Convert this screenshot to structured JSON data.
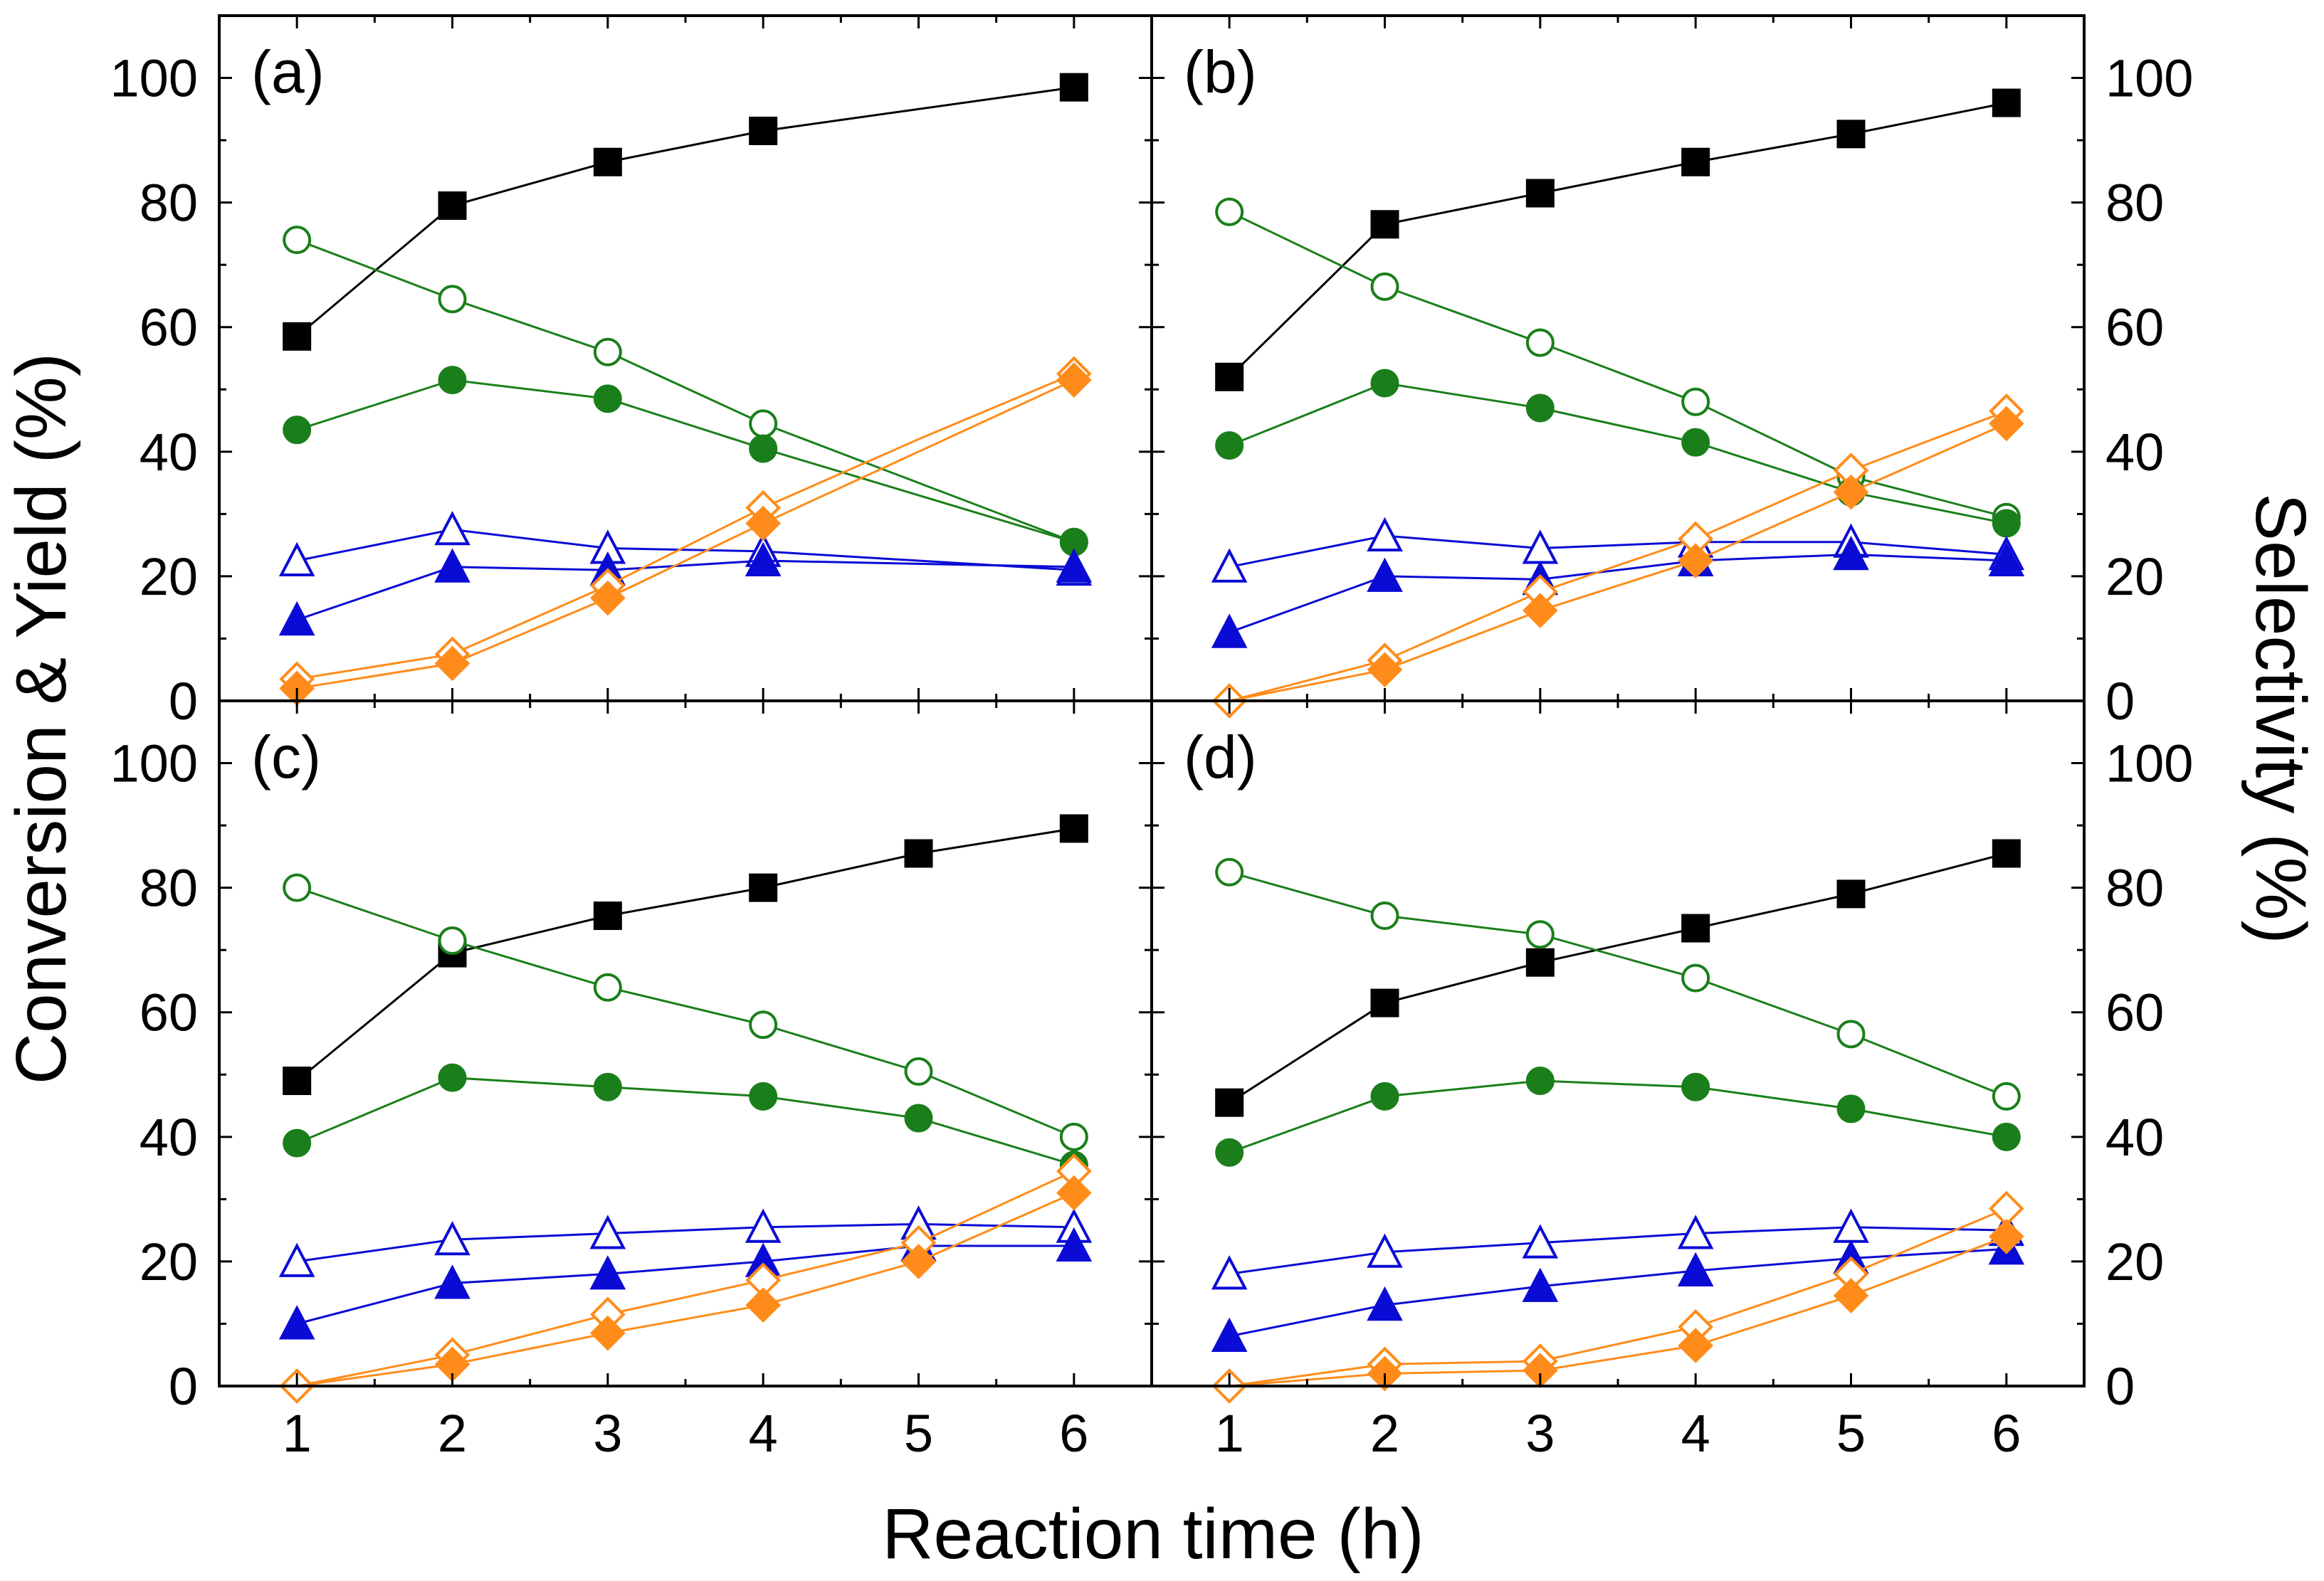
{
  "chart_data": {
    "type": "line",
    "xlabel": "Reaction time (h)",
    "ylabel_left": "Conversion & Yield (%)",
    "ylabel_right": "Selectivity (%)",
    "x": [
      1,
      2,
      3,
      4,
      5,
      6
    ],
    "xticks": [
      "1",
      "2",
      "3",
      "4",
      "5",
      "6"
    ],
    "xlim": [
      0.5,
      6.5
    ],
    "ylim": [
      0,
      110
    ],
    "yticks": [
      "0",
      "20",
      "40",
      "60",
      "80",
      "100"
    ],
    "colors": {
      "black": "#000000",
      "green": "#1a7f1a",
      "blue": "#0b0bd6",
      "orange": "#ff8c1a"
    },
    "panels": [
      {
        "label": "(a)",
        "series": [
          {
            "name": "black-filled-square",
            "color": "#000000",
            "marker": "square",
            "filled": true,
            "values": [
              58.5,
              79.5,
              86.5,
              91.5,
              95,
              98.5
            ],
            "marked": [
              true,
              true,
              true,
              true,
              false,
              true
            ]
          },
          {
            "name": "green-open-circle",
            "color": "#1a7f1a",
            "marker": "circle",
            "filled": false,
            "values": [
              74,
              64.5,
              56,
              44.5,
              35,
              25.5
            ],
            "marked": [
              true,
              true,
              true,
              true,
              false,
              true
            ]
          },
          {
            "name": "green-filled-circle",
            "color": "#1a7f1a",
            "marker": "circle",
            "filled": true,
            "values": [
              43.5,
              51.5,
              48.5,
              40.5,
              33,
              25.5
            ],
            "marked": [
              true,
              true,
              true,
              true,
              false,
              true
            ]
          },
          {
            "name": "blue-open-triangle",
            "color": "#0b0bd6",
            "marker": "triangle",
            "filled": false,
            "values": [
              22.5,
              27.5,
              24.5,
              24,
              22.5,
              21
            ],
            "marked": [
              true,
              true,
              true,
              true,
              false,
              true
            ]
          },
          {
            "name": "blue-filled-triangle",
            "color": "#0b0bd6",
            "marker": "triangle",
            "filled": true,
            "values": [
              13,
              21.5,
              21,
              22.5,
              22,
              21.5
            ],
            "marked": [
              true,
              true,
              true,
              true,
              false,
              true
            ]
          },
          {
            "name": "orange-open-diamond",
            "color": "#ff8c1a",
            "marker": "diamond",
            "filled": false,
            "values": [
              3.5,
              7.5,
              18.5,
              31,
              42,
              52.5
            ],
            "marked": [
              true,
              true,
              true,
              true,
              false,
              true
            ]
          },
          {
            "name": "orange-filled-diamond",
            "color": "#ff8c1a",
            "marker": "diamond",
            "filled": true,
            "values": [
              2,
              6,
              16.5,
              28.5,
              40,
              51.5
            ],
            "marked": [
              true,
              true,
              true,
              true,
              false,
              true
            ]
          }
        ]
      },
      {
        "label": "(b)",
        "series": [
          {
            "name": "black-filled-square",
            "color": "#000000",
            "marker": "square",
            "filled": true,
            "values": [
              52,
              76.5,
              81.5,
              86.5,
              91,
              96
            ],
            "marked": [
              true,
              true,
              true,
              true,
              true,
              true
            ]
          },
          {
            "name": "green-open-circle",
            "color": "#1a7f1a",
            "marker": "circle",
            "filled": false,
            "values": [
              78.5,
              66.5,
              57.5,
              48,
              36,
              29.5
            ],
            "marked": [
              true,
              true,
              true,
              true,
              true,
              true
            ]
          },
          {
            "name": "green-filled-circle",
            "color": "#1a7f1a",
            "marker": "circle",
            "filled": true,
            "values": [
              41,
              51,
              47,
              41.5,
              33.5,
              28.5
            ],
            "marked": [
              true,
              true,
              true,
              true,
              true,
              true
            ]
          },
          {
            "name": "blue-open-triangle",
            "color": "#0b0bd6",
            "marker": "triangle",
            "filled": false,
            "values": [
              21.5,
              26.5,
              24.5,
              25.5,
              25.5,
              23.5
            ],
            "marked": [
              true,
              true,
              true,
              true,
              true,
              true
            ]
          },
          {
            "name": "blue-filled-triangle",
            "color": "#0b0bd6",
            "marker": "triangle",
            "filled": true,
            "values": [
              11,
              20,
              19.5,
              22.5,
              23.5,
              22.5
            ],
            "marked": [
              true,
              true,
              true,
              true,
              true,
              true
            ]
          },
          {
            "name": "orange-open-diamond",
            "color": "#ff8c1a",
            "marker": "diamond",
            "filled": false,
            "values": [
              0,
              6.5,
              17.5,
              26,
              37,
              46.5
            ],
            "marked": [
              true,
              true,
              true,
              true,
              true,
              true
            ]
          },
          {
            "name": "orange-filled-diamond",
            "color": "#ff8c1a",
            "marker": "diamond",
            "filled": true,
            "values": [
              0,
              5,
              14.5,
              22.5,
              33.5,
              44.5
            ],
            "marked": [
              false,
              true,
              true,
              true,
              true,
              true
            ]
          }
        ]
      },
      {
        "label": "(c)",
        "series": [
          {
            "name": "black-filled-square",
            "color": "#000000",
            "marker": "square",
            "filled": true,
            "values": [
              49,
              69.5,
              75.5,
              80,
              85.5,
              89.5
            ],
            "marked": [
              true,
              true,
              true,
              true,
              true,
              true
            ]
          },
          {
            "name": "green-open-circle",
            "color": "#1a7f1a",
            "marker": "circle",
            "filled": false,
            "values": [
              80,
              71.5,
              64,
              58,
              50.5,
              40
            ],
            "marked": [
              true,
              true,
              true,
              true,
              true,
              true
            ]
          },
          {
            "name": "green-filled-circle",
            "color": "#1a7f1a",
            "marker": "circle",
            "filled": true,
            "values": [
              39,
              49.5,
              48,
              46.5,
              43,
              35.5
            ],
            "marked": [
              true,
              true,
              true,
              true,
              true,
              true
            ]
          },
          {
            "name": "blue-open-triangle",
            "color": "#0b0bd6",
            "marker": "triangle",
            "filled": false,
            "values": [
              20,
              23.5,
              24.5,
              25.5,
              26,
              25.5
            ],
            "marked": [
              true,
              true,
              true,
              true,
              true,
              true
            ]
          },
          {
            "name": "blue-filled-triangle",
            "color": "#0b0bd6",
            "marker": "triangle",
            "filled": true,
            "values": [
              10,
              16.5,
              18,
              20,
              22.5,
              22.5
            ],
            "marked": [
              true,
              true,
              true,
              true,
              true,
              true
            ]
          },
          {
            "name": "orange-open-diamond",
            "color": "#ff8c1a",
            "marker": "diamond",
            "filled": false,
            "values": [
              0,
              5,
              11.5,
              17,
              23,
              34.5
            ],
            "marked": [
              true,
              true,
              true,
              true,
              true,
              true
            ]
          },
          {
            "name": "orange-filled-diamond",
            "color": "#ff8c1a",
            "marker": "diamond",
            "filled": true,
            "values": [
              0,
              3.5,
              8.5,
              13,
              20,
              31
            ],
            "marked": [
              false,
              true,
              true,
              true,
              true,
              true
            ]
          }
        ]
      },
      {
        "label": "(d)",
        "series": [
          {
            "name": "black-filled-square",
            "color": "#000000",
            "marker": "square",
            "filled": true,
            "values": [
              45.5,
              61.5,
              68,
              73.5,
              79,
              85.5
            ],
            "marked": [
              true,
              true,
              true,
              true,
              true,
              true
            ]
          },
          {
            "name": "green-open-circle",
            "color": "#1a7f1a",
            "marker": "circle",
            "filled": false,
            "values": [
              82.5,
              75.5,
              72.5,
              65.5,
              56.5,
              46.5
            ],
            "marked": [
              true,
              true,
              true,
              true,
              true,
              true
            ]
          },
          {
            "name": "green-filled-circle",
            "color": "#1a7f1a",
            "marker": "circle",
            "filled": true,
            "values": [
              37.5,
              46.5,
              49,
              48,
              44.5,
              40
            ],
            "marked": [
              true,
              true,
              true,
              true,
              true,
              true
            ]
          },
          {
            "name": "blue-open-triangle",
            "color": "#0b0bd6",
            "marker": "triangle",
            "filled": false,
            "values": [
              18,
              21.5,
              23,
              24.5,
              25.5,
              25
            ],
            "marked": [
              true,
              true,
              true,
              true,
              true,
              true
            ]
          },
          {
            "name": "blue-filled-triangle",
            "color": "#0b0bd6",
            "marker": "triangle",
            "filled": true,
            "values": [
              8,
              13,
              16,
              18.5,
              20.5,
              22
            ],
            "marked": [
              true,
              true,
              true,
              true,
              true,
              true
            ]
          },
          {
            "name": "orange-open-diamond",
            "color": "#ff8c1a",
            "marker": "diamond",
            "filled": false,
            "values": [
              0,
              3.5,
              4,
              9.5,
              18,
              28.5
            ],
            "marked": [
              true,
              true,
              true,
              true,
              true,
              true
            ]
          },
          {
            "name": "orange-filled-diamond",
            "color": "#ff8c1a",
            "marker": "diamond",
            "filled": true,
            "values": [
              0,
              2,
              2.5,
              6.5,
              14.5,
              24
            ],
            "marked": [
              false,
              true,
              true,
              true,
              true,
              true
            ]
          }
        ]
      }
    ]
  }
}
